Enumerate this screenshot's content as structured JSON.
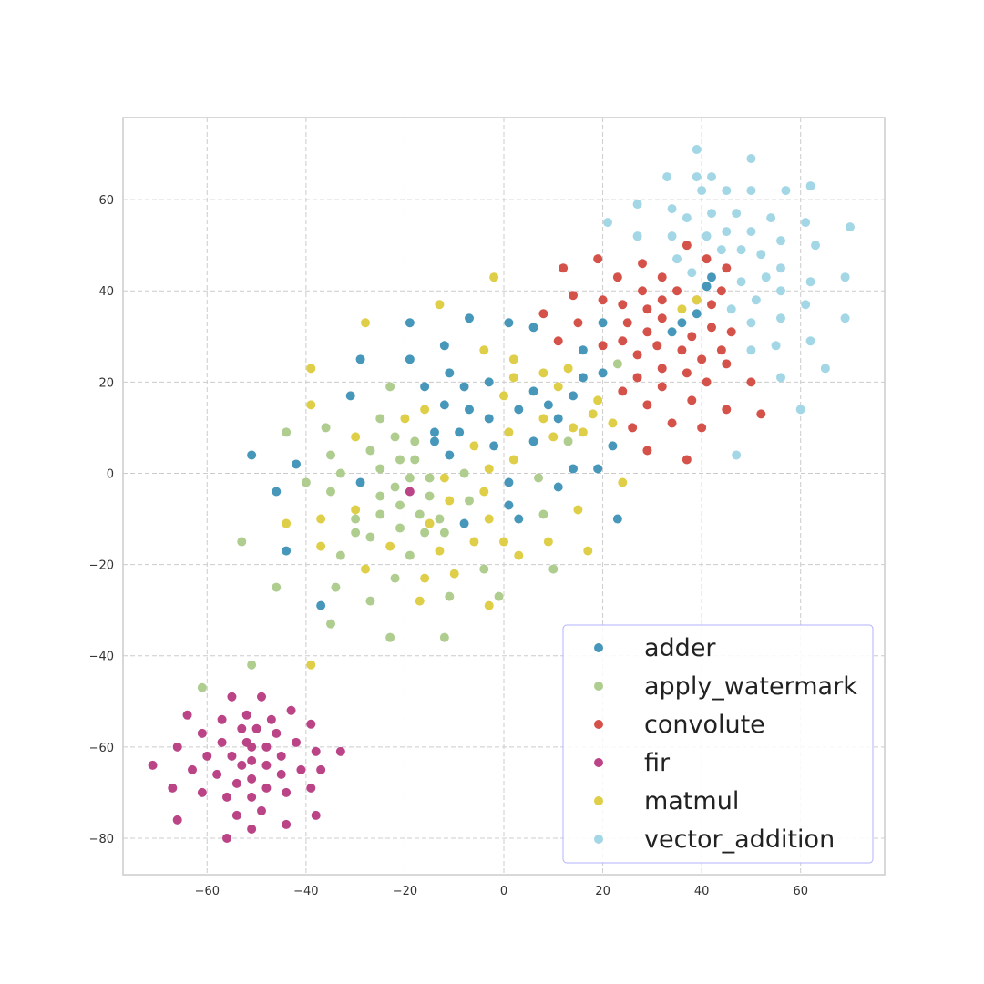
{
  "chart_data": {
    "type": "scatter",
    "title": "",
    "xlabel": "",
    "ylabel": "",
    "xlim": [
      -77,
      77
    ],
    "ylim": [
      -88,
      78
    ],
    "xticks": [
      -60,
      -40,
      -20,
      0,
      20,
      40,
      60
    ],
    "yticks": [
      -80,
      -60,
      -40,
      -20,
      0,
      20,
      40,
      60
    ],
    "xtick_labels": [
      "−60",
      "−40",
      "−20",
      "0",
      "20",
      "40",
      "60"
    ],
    "ytick_labels": [
      "−80",
      "−60",
      "−40",
      "−20",
      "0",
      "20",
      "40",
      "60"
    ],
    "grid": true,
    "grid_style": "dashed",
    "legend_position": "bottom-right",
    "series": [
      {
        "name": "adder",
        "color": "#4797bb",
        "points": [
          [
            -51,
            4
          ],
          [
            -46,
            -4
          ],
          [
            -42,
            2
          ],
          [
            -44,
            -17
          ],
          [
            -37,
            -29
          ],
          [
            -31,
            17
          ],
          [
            -29,
            25
          ],
          [
            -29,
            -2
          ],
          [
            -19,
            33
          ],
          [
            -19,
            25
          ],
          [
            -16,
            19
          ],
          [
            -14,
            9
          ],
          [
            -14,
            7
          ],
          [
            -12,
            15
          ],
          [
            -12,
            28
          ],
          [
            -11,
            22
          ],
          [
            -11,
            4
          ],
          [
            -9,
            9
          ],
          [
            -8,
            -11
          ],
          [
            -8,
            19
          ],
          [
            -7,
            14
          ],
          [
            -7,
            34
          ],
          [
            -3,
            20
          ],
          [
            -3,
            12
          ],
          [
            -2,
            6
          ],
          [
            1,
            33
          ],
          [
            1,
            -2
          ],
          [
            1,
            -7
          ],
          [
            3,
            14
          ],
          [
            3,
            -10
          ],
          [
            6,
            32
          ],
          [
            6,
            18
          ],
          [
            6,
            7
          ],
          [
            9,
            15
          ],
          [
            11,
            12
          ],
          [
            11,
            -3
          ],
          [
            14,
            17
          ],
          [
            14,
            1
          ],
          [
            16,
            21
          ],
          [
            16,
            27
          ],
          [
            19,
            1
          ],
          [
            20,
            33
          ],
          [
            20,
            22
          ],
          [
            22,
            6
          ],
          [
            23,
            -10
          ],
          [
            34,
            31
          ],
          [
            36,
            33
          ],
          [
            39,
            35
          ],
          [
            41,
            41
          ],
          [
            42,
            43
          ]
        ]
      },
      {
        "name": "apply_watermark",
        "color": "#aecd8f",
        "points": [
          [
            -53,
            -15
          ],
          [
            -46,
            -25
          ],
          [
            -44,
            9
          ],
          [
            -40,
            -2
          ],
          [
            -36,
            10
          ],
          [
            -35,
            4
          ],
          [
            -35,
            -4
          ],
          [
            -35,
            -33
          ],
          [
            -34,
            -25
          ],
          [
            -33,
            -18
          ],
          [
            -33,
            0
          ],
          [
            -30,
            -13
          ],
          [
            -30,
            -10
          ],
          [
            -27,
            5
          ],
          [
            -27,
            -14
          ],
          [
            -27,
            -28
          ],
          [
            -25,
            12
          ],
          [
            -25,
            1
          ],
          [
            -25,
            -5
          ],
          [
            -25,
            -9
          ],
          [
            -23,
            19
          ],
          [
            -23,
            -36
          ],
          [
            -22,
            -3
          ],
          [
            -22,
            -23
          ],
          [
            -22,
            8
          ],
          [
            -21,
            3
          ],
          [
            -21,
            -7
          ],
          [
            -21,
            -12
          ],
          [
            -19,
            -1
          ],
          [
            -19,
            -18
          ],
          [
            -18,
            7
          ],
          [
            -18,
            3
          ],
          [
            -17,
            -9
          ],
          [
            -16,
            -13
          ],
          [
            -15,
            -1
          ],
          [
            -15,
            -5
          ],
          [
            -13,
            -10
          ],
          [
            -12,
            -13
          ],
          [
            -12,
            -36
          ],
          [
            -11,
            -27
          ],
          [
            -8,
            0
          ],
          [
            -7,
            -6
          ],
          [
            -4,
            -21
          ],
          [
            -1,
            -27
          ],
          [
            7,
            -1
          ],
          [
            8,
            -9
          ],
          [
            10,
            -21
          ],
          [
            13,
            7
          ],
          [
            23,
            24
          ],
          [
            -51,
            -42
          ],
          [
            -61,
            -47
          ]
        ]
      },
      {
        "name": "convolute",
        "color": "#d5524a",
        "points": [
          [
            8,
            35
          ],
          [
            11,
            29
          ],
          [
            12,
            45
          ],
          [
            14,
            39
          ],
          [
            15,
            33
          ],
          [
            19,
            47
          ],
          [
            20,
            38
          ],
          [
            20,
            28
          ],
          [
            23,
            43
          ],
          [
            24,
            37
          ],
          [
            24,
            29
          ],
          [
            24,
            18
          ],
          [
            25,
            33
          ],
          [
            26,
            10
          ],
          [
            27,
            21
          ],
          [
            27,
            26
          ],
          [
            28,
            46
          ],
          [
            28,
            40
          ],
          [
            29,
            36
          ],
          [
            29,
            31
          ],
          [
            29,
            15
          ],
          [
            29,
            5
          ],
          [
            31,
            28
          ],
          [
            32,
            43
          ],
          [
            32,
            38
          ],
          [
            32,
            34
          ],
          [
            32,
            23
          ],
          [
            32,
            19
          ],
          [
            34,
            11
          ],
          [
            35,
            40
          ],
          [
            36,
            27
          ],
          [
            37,
            22
          ],
          [
            37,
            50
          ],
          [
            38,
            16
          ],
          [
            38,
            30
          ],
          [
            39,
            38
          ],
          [
            40,
            25
          ],
          [
            40,
            10
          ],
          [
            41,
            47
          ],
          [
            41,
            20
          ],
          [
            42,
            32
          ],
          [
            42,
            37
          ],
          [
            44,
            27
          ],
          [
            44,
            40
          ],
          [
            45,
            45
          ],
          [
            45,
            24
          ],
          [
            45,
            14
          ],
          [
            46,
            31
          ],
          [
            50,
            20
          ],
          [
            52,
            13
          ],
          [
            37,
            3
          ]
        ]
      },
      {
        "name": "fir",
        "color": "#bb4487",
        "points": [
          [
            -71,
            -64
          ],
          [
            -67,
            -69
          ],
          [
            -66,
            -60
          ],
          [
            -66,
            -76
          ],
          [
            -64,
            -53
          ],
          [
            -63,
            -65
          ],
          [
            -61,
            -57
          ],
          [
            -61,
            -70
          ],
          [
            -60,
            -62
          ],
          [
            -58,
            -66
          ],
          [
            -57,
            -54
          ],
          [
            -57,
            -59
          ],
          [
            -56,
            -80
          ],
          [
            -56,
            -71
          ],
          [
            -55,
            -62
          ],
          [
            -55,
            -49
          ],
          [
            -54,
            -68
          ],
          [
            -54,
            -75
          ],
          [
            -53,
            -56
          ],
          [
            -53,
            -64
          ],
          [
            -52,
            -59
          ],
          [
            -52,
            -53
          ],
          [
            -51,
            -60
          ],
          [
            -51,
            -63
          ],
          [
            -51,
            -67
          ],
          [
            -51,
            -71
          ],
          [
            -51,
            -78
          ],
          [
            -50,
            -56
          ],
          [
            -49,
            -74
          ],
          [
            -49,
            -49
          ],
          [
            -48,
            -60
          ],
          [
            -48,
            -64
          ],
          [
            -48,
            -69
          ],
          [
            -47,
            -54
          ],
          [
            -46,
            -57
          ],
          [
            -45,
            -62
          ],
          [
            -45,
            -66
          ],
          [
            -44,
            -70
          ],
          [
            -44,
            -77
          ],
          [
            -43,
            -52
          ],
          [
            -42,
            -59
          ],
          [
            -41,
            -65
          ],
          [
            -39,
            -55
          ],
          [
            -39,
            -69
          ],
          [
            -38,
            -61
          ],
          [
            -38,
            -75
          ],
          [
            -37,
            -65
          ],
          [
            -33,
            -61
          ],
          [
            -19,
            -4
          ]
        ]
      },
      {
        "name": "matmul",
        "color": "#dfce48",
        "points": [
          [
            -44,
            -11
          ],
          [
            -39,
            23
          ],
          [
            -39,
            15
          ],
          [
            -39,
            -42
          ],
          [
            -37,
            -10
          ],
          [
            -37,
            -16
          ],
          [
            -30,
            8
          ],
          [
            -30,
            -8
          ],
          [
            -28,
            33
          ],
          [
            -28,
            -21
          ],
          [
            -23,
            -16
          ],
          [
            -20,
            12
          ],
          [
            -16,
            14
          ],
          [
            -16,
            -23
          ],
          [
            -15,
            -11
          ],
          [
            -13,
            37
          ],
          [
            -13,
            -17
          ],
          [
            -12,
            -1
          ],
          [
            -11,
            -6
          ],
          [
            -10,
            -22
          ],
          [
            -6,
            6
          ],
          [
            -6,
            -15
          ],
          [
            -4,
            27
          ],
          [
            -4,
            -4
          ],
          [
            -3,
            1
          ],
          [
            -3,
            -10
          ],
          [
            -3,
            -29
          ],
          [
            -2,
            43
          ],
          [
            0,
            17
          ],
          [
            0,
            -15
          ],
          [
            1,
            9
          ],
          [
            2,
            25
          ],
          [
            2,
            21
          ],
          [
            2,
            3
          ],
          [
            3,
            -18
          ],
          [
            8,
            12
          ],
          [
            8,
            22
          ],
          [
            9,
            -15
          ],
          [
            10,
            8
          ],
          [
            11,
            19
          ],
          [
            13,
            23
          ],
          [
            14,
            10
          ],
          [
            15,
            -8
          ],
          [
            16,
            9
          ],
          [
            17,
            -17
          ],
          [
            18,
            13
          ],
          [
            19,
            16
          ],
          [
            22,
            11
          ],
          [
            24,
            -2
          ],
          [
            36,
            36
          ],
          [
            39,
            38
          ],
          [
            -17,
            -28
          ]
        ]
      },
      {
        "name": "vector_addition",
        "color": "#a3d7e6",
        "points": [
          [
            21,
            55
          ],
          [
            27,
            59
          ],
          [
            27,
            52
          ],
          [
            33,
            65
          ],
          [
            34,
            52
          ],
          [
            34,
            58
          ],
          [
            35,
            47
          ],
          [
            37,
            56
          ],
          [
            38,
            44
          ],
          [
            39,
            65
          ],
          [
            39,
            71
          ],
          [
            40,
            62
          ],
          [
            41,
            52
          ],
          [
            42,
            65
          ],
          [
            42,
            57
          ],
          [
            44,
            49
          ],
          [
            45,
            62
          ],
          [
            45,
            53
          ],
          [
            46,
            36
          ],
          [
            47,
            4
          ],
          [
            47,
            57
          ],
          [
            48,
            42
          ],
          [
            48,
            49
          ],
          [
            50,
            53
          ],
          [
            50,
            62
          ],
          [
            50,
            69
          ],
          [
            50,
            33
          ],
          [
            50,
            27
          ],
          [
            51,
            38
          ],
          [
            52,
            48
          ],
          [
            53,
            43
          ],
          [
            54,
            56
          ],
          [
            55,
            28
          ],
          [
            56,
            34
          ],
          [
            56,
            40
          ],
          [
            56,
            51
          ],
          [
            56,
            45
          ],
          [
            56,
            21
          ],
          [
            57,
            62
          ],
          [
            60,
            14
          ],
          [
            61,
            55
          ],
          [
            61,
            37
          ],
          [
            62,
            63
          ],
          [
            62,
            29
          ],
          [
            62,
            42
          ],
          [
            63,
            50
          ],
          [
            65,
            23
          ],
          [
            69,
            43
          ],
          [
            69,
            34
          ],
          [
            70,
            54
          ]
        ]
      }
    ]
  }
}
